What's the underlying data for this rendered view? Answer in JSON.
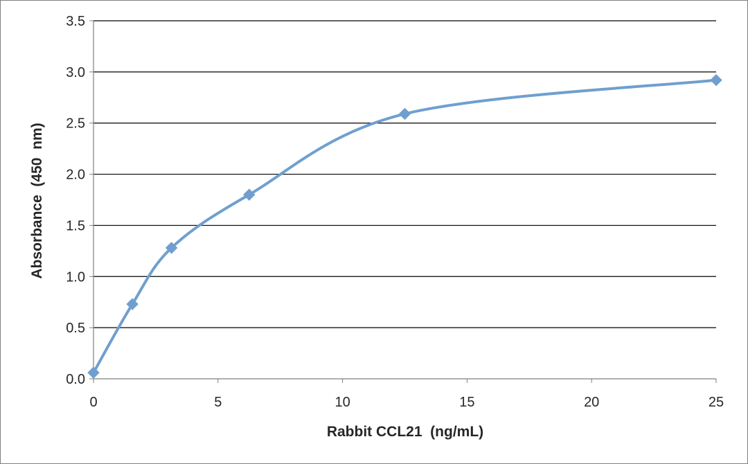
{
  "chart_data": {
    "type": "line",
    "title": "",
    "xlabel": "Rabbit CCL21  (ng/mL)",
    "ylabel": "Absorbance  (450  nm)",
    "xlim": [
      0,
      25
    ],
    "ylim": [
      0,
      3.5
    ],
    "x_ticks": [
      "0",
      "5",
      "10",
      "15",
      "20",
      "25"
    ],
    "y_ticks": [
      "0.0",
      "0.5",
      "1.0",
      "1.5",
      "2.0",
      "2.5",
      "3.0",
      "3.5"
    ],
    "grid": "horizontal",
    "legend": "none",
    "smoothed": true,
    "marker": "diamond",
    "series": [
      {
        "color": "#6f9fcf",
        "x": [
          0,
          1.56,
          3.13,
          6.25,
          12.5,
          25
        ],
        "y": [
          0.06,
          0.73,
          1.28,
          1.8,
          2.59,
          2.92
        ]
      }
    ]
  },
  "colors": {
    "line": "#6f9fcf",
    "marker": "#6f9fcf",
    "grid": "#000000",
    "axis": "#7f7f7f",
    "text": "#262626"
  }
}
